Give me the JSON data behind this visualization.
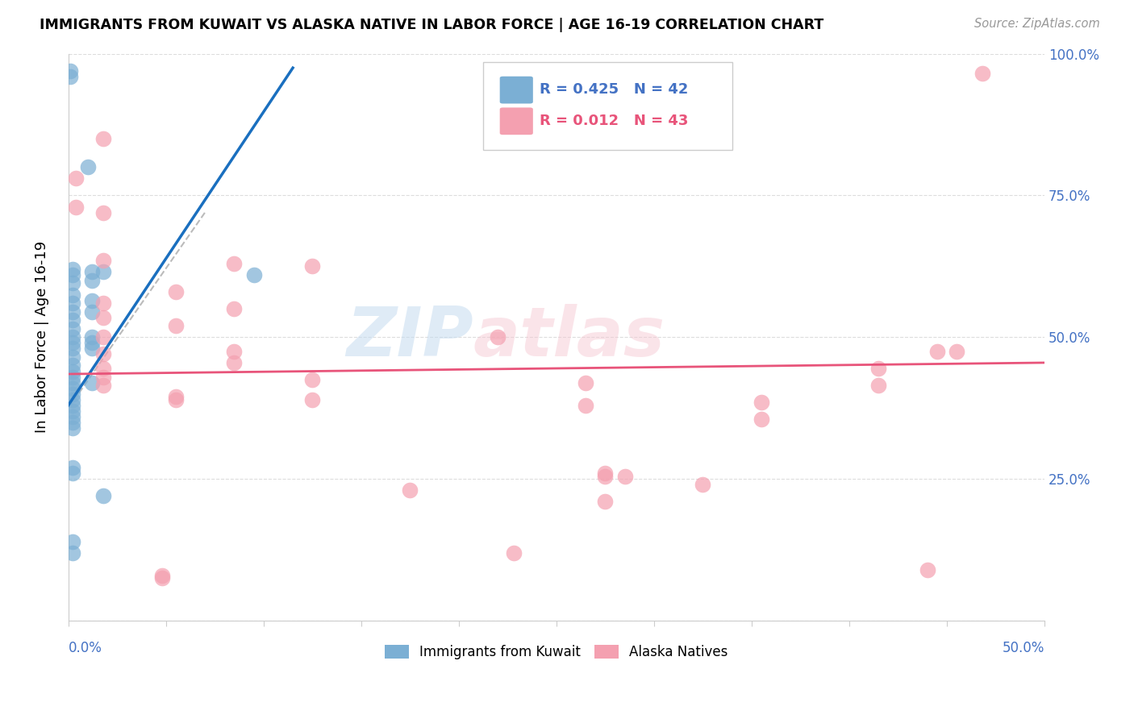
{
  "title": "IMMIGRANTS FROM KUWAIT VS ALASKA NATIVE IN LABOR FORCE | AGE 16-19 CORRELATION CHART",
  "source": "Source: ZipAtlas.com",
  "ylabel": "In Labor Force | Age 16-19",
  "xlim": [
    0.0,
    0.5
  ],
  "ylim": [
    0.0,
    1.0
  ],
  "yticks": [
    0.0,
    0.25,
    0.5,
    0.75,
    1.0
  ],
  "ytick_labels": [
    "",
    "25.0%",
    "50.0%",
    "75.0%",
    "100.0%"
  ],
  "xticks": [
    0.0,
    0.05,
    0.1,
    0.15,
    0.2,
    0.25,
    0.3,
    0.35,
    0.4,
    0.45,
    0.5
  ],
  "legend_blue_R": "R = 0.425",
  "legend_blue_N": "N = 42",
  "legend_pink_R": "R = 0.012",
  "legend_pink_N": "N = 43",
  "blue_color": "#7BAFD4",
  "pink_color": "#F4A0B0",
  "blue_line_color": "#1A6FBF",
  "pink_line_color": "#E8547A",
  "blue_line": [
    [
      0.0,
      0.38
    ],
    [
      0.115,
      0.975
    ]
  ],
  "blue_line_dashed": [
    [
      -0.005,
      0.35
    ],
    [
      0.07,
      0.72
    ]
  ],
  "pink_line": [
    [
      0.0,
      0.435
    ],
    [
      0.5,
      0.455
    ]
  ],
  "watermark_zip": "ZIP",
  "watermark_atlas": "atlas",
  "blue_scatter": [
    [
      0.001,
      0.97
    ],
    [
      0.001,
      0.96
    ],
    [
      0.01,
      0.8
    ],
    [
      0.002,
      0.62
    ],
    [
      0.002,
      0.61
    ],
    [
      0.002,
      0.595
    ],
    [
      0.002,
      0.575
    ],
    [
      0.002,
      0.56
    ],
    [
      0.002,
      0.545
    ],
    [
      0.002,
      0.53
    ],
    [
      0.002,
      0.515
    ],
    [
      0.002,
      0.5
    ],
    [
      0.002,
      0.49
    ],
    [
      0.002,
      0.48
    ],
    [
      0.002,
      0.465
    ],
    [
      0.002,
      0.45
    ],
    [
      0.002,
      0.44
    ],
    [
      0.002,
      0.43
    ],
    [
      0.002,
      0.42
    ],
    [
      0.002,
      0.41
    ],
    [
      0.002,
      0.4
    ],
    [
      0.002,
      0.39
    ],
    [
      0.002,
      0.38
    ],
    [
      0.002,
      0.37
    ],
    [
      0.002,
      0.36
    ],
    [
      0.002,
      0.35
    ],
    [
      0.002,
      0.34
    ],
    [
      0.002,
      0.27
    ],
    [
      0.002,
      0.26
    ],
    [
      0.002,
      0.14
    ],
    [
      0.002,
      0.12
    ],
    [
      0.012,
      0.615
    ],
    [
      0.012,
      0.6
    ],
    [
      0.012,
      0.565
    ],
    [
      0.012,
      0.545
    ],
    [
      0.012,
      0.5
    ],
    [
      0.012,
      0.49
    ],
    [
      0.012,
      0.48
    ],
    [
      0.012,
      0.42
    ],
    [
      0.095,
      0.61
    ],
    [
      0.018,
      0.615
    ],
    [
      0.018,
      0.22
    ]
  ],
  "pink_scatter": [
    [
      0.004,
      0.78
    ],
    [
      0.004,
      0.73
    ],
    [
      0.018,
      0.85
    ],
    [
      0.018,
      0.72
    ],
    [
      0.018,
      0.635
    ],
    [
      0.018,
      0.56
    ],
    [
      0.018,
      0.535
    ],
    [
      0.018,
      0.5
    ],
    [
      0.018,
      0.47
    ],
    [
      0.018,
      0.445
    ],
    [
      0.018,
      0.43
    ],
    [
      0.018,
      0.415
    ],
    [
      0.055,
      0.58
    ],
    [
      0.055,
      0.52
    ],
    [
      0.055,
      0.395
    ],
    [
      0.055,
      0.39
    ],
    [
      0.085,
      0.63
    ],
    [
      0.085,
      0.55
    ],
    [
      0.085,
      0.475
    ],
    [
      0.085,
      0.455
    ],
    [
      0.125,
      0.625
    ],
    [
      0.125,
      0.425
    ],
    [
      0.125,
      0.39
    ],
    [
      0.175,
      0.23
    ],
    [
      0.22,
      0.5
    ],
    [
      0.265,
      0.42
    ],
    [
      0.265,
      0.38
    ],
    [
      0.275,
      0.26
    ],
    [
      0.275,
      0.255
    ],
    [
      0.275,
      0.21
    ],
    [
      0.285,
      0.255
    ],
    [
      0.325,
      0.24
    ],
    [
      0.355,
      0.385
    ],
    [
      0.355,
      0.355
    ],
    [
      0.415,
      0.445
    ],
    [
      0.415,
      0.415
    ],
    [
      0.455,
      0.475
    ],
    [
      0.048,
      0.08
    ],
    [
      0.228,
      0.12
    ],
    [
      0.468,
      0.965
    ],
    [
      0.445,
      0.475
    ],
    [
      0.44,
      0.09
    ],
    [
      0.048,
      0.075
    ]
  ]
}
